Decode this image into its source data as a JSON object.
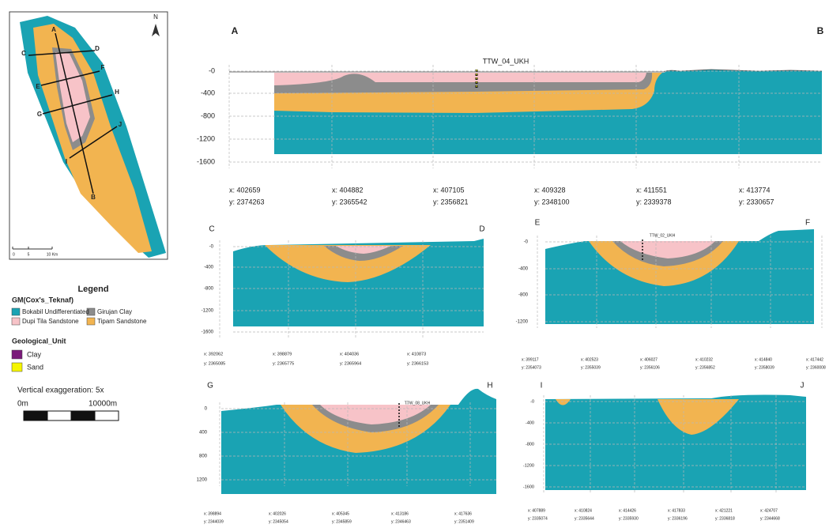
{
  "map": {
    "north": "N",
    "labels": [
      "A",
      "B",
      "C",
      "D",
      "E",
      "F",
      "G",
      "H",
      "I",
      "J"
    ],
    "scale": [
      "0",
      "5",
      "10 Km"
    ]
  },
  "legend": {
    "title": "Legend",
    "group1": "GM(Cox's_Teknaf)",
    "items1": [
      "Bokabil Undifferentiated",
      "Girujan Clay",
      "Dupi Tila Sandstone",
      "Tipam Sandstone"
    ],
    "group2": "Geological_Unit",
    "items2": [
      "Clay",
      "Sand"
    ],
    "exaggeration": "Vertical exaggeration: 5x",
    "scale": [
      "0m",
      "10000m"
    ]
  },
  "sections": [
    {
      "start": "A",
      "end": "B",
      "well": "TTW_04_UKH",
      "yticks": [
        "-0",
        "-400",
        "-800",
        "-1200",
        "-1600"
      ],
      "coords": [
        [
          "x: 402659",
          "y: 2374263"
        ],
        [
          "x: 404882",
          "y: 2365542"
        ],
        [
          "x: 407105",
          "y: 2356821"
        ],
        [
          "x: 409328",
          "y: 2348100"
        ],
        [
          "x: 411551",
          "y: 2339378"
        ],
        [
          "x: 413774",
          "y: 2330657"
        ]
      ]
    },
    {
      "start": "C",
      "end": "D",
      "yticks": [
        "-0",
        "-400",
        "-800",
        "-1200",
        "-1600"
      ],
      "coords": [
        [
          "x: 392062",
          "y: 2365085"
        ],
        [
          "x: 398879",
          "y: 2365775"
        ],
        [
          "x: 404036",
          "y: 2365964"
        ],
        [
          "x: 410873",
          "y: 2366153"
        ]
      ]
    },
    {
      "start": "E",
      "end": "F",
      "well": "TTW_02_UKH",
      "yticks": [
        "-0",
        "-400",
        "-800",
        "-1200"
      ],
      "coords": [
        [
          "x: 399117",
          "y: 2354073"
        ],
        [
          "x: 402523",
          "y: 2355039"
        ],
        [
          "x: 406027",
          "y: 2356106"
        ],
        [
          "x: 410232",
          "y: 2356852"
        ],
        [
          "x: 414840",
          "y: 2358039"
        ],
        [
          "x: 417442",
          "y: 2360008"
        ]
      ]
    },
    {
      "start": "G",
      "end": "H",
      "well": "TTW_08_UKH",
      "yticks": [
        "0",
        "400",
        "800",
        "1200"
      ],
      "coords": [
        [
          "x: 398894",
          "y: 2344039"
        ],
        [
          "x: 402026",
          "y: 2345054"
        ],
        [
          "x: 405345",
          "y: 2345859"
        ],
        [
          "x: 413186",
          "y: 2346463"
        ],
        [
          "x: 417636",
          "y: 2351409"
        ]
      ]
    },
    {
      "start": "I",
      "end": "J",
      "yticks": [
        "-0",
        "-400",
        "-800",
        "-1200",
        "-1600"
      ],
      "coords": [
        [
          "x: 407889",
          "y: 2335074"
        ],
        [
          "x: 410824",
          "y: 2335644"
        ],
        [
          "x: 414426",
          "y: 2335930"
        ],
        [
          "x: 417833",
          "y: 2336196"
        ],
        [
          "x: 421221",
          "y: 2336818"
        ],
        [
          "x: 424707",
          "y: 2344668"
        ]
      ]
    }
  ]
}
